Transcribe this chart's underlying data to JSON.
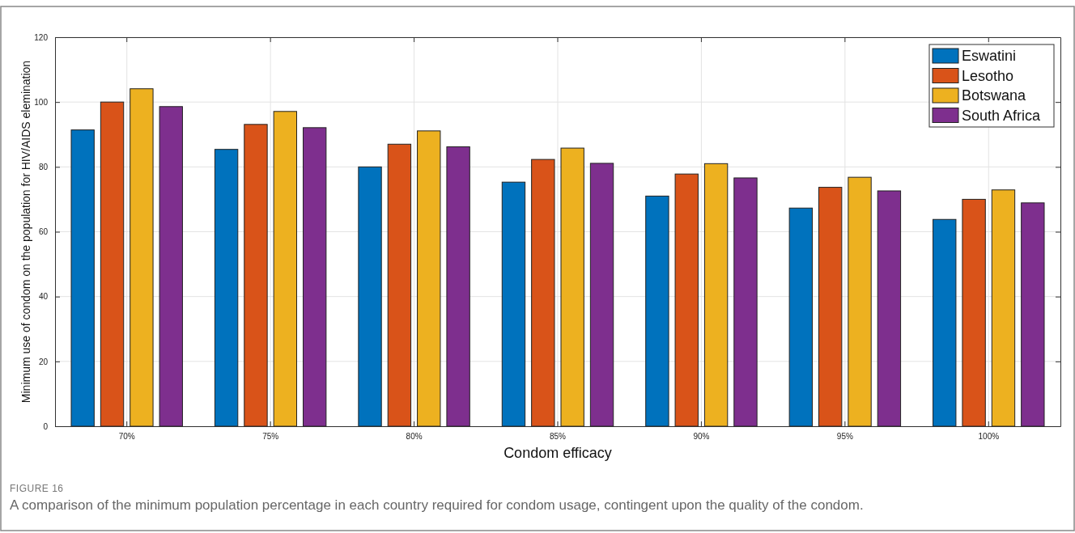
{
  "chart_data": {
    "type": "bar",
    "categories": [
      "70%",
      "75%",
      "80%",
      "85%",
      "90%",
      "95%",
      "100%"
    ],
    "series": [
      {
        "name": "Eswatini",
        "color": "#0072bd",
        "values": [
          91.4,
          85.4,
          80,
          75.3,
          71,
          67.3,
          63.8
        ]
      },
      {
        "name": "Lesotho",
        "color": "#d95319",
        "values": [
          100,
          93.1,
          87,
          82.3,
          77.8,
          73.7,
          70
        ]
      },
      {
        "name": "Botswana",
        "color": "#edb120",
        "values": [
          104.1,
          97.1,
          91.1,
          85.8,
          81,
          76.8,
          72.9
        ]
      },
      {
        "name": "South Africa",
        "color": "#7e2f8e",
        "values": [
          98.6,
          92.1,
          86.2,
          81.1,
          76.6,
          72.6,
          68.9
        ]
      }
    ],
    "xlabel": "Condom efficacy",
    "ylabel": "Minimum use of condom on the population for HIV/AIDS elemination",
    "ylim": [
      0,
      120
    ],
    "yticks": [
      0,
      20,
      40,
      60,
      80,
      100,
      120
    ],
    "grid": true,
    "legend": "top right",
    "annotations": [
      "FIGURE 16",
      "A comparison of the minimum population percentage in each country required for condom usage, contingent upon the quality of the condom."
    ]
  }
}
